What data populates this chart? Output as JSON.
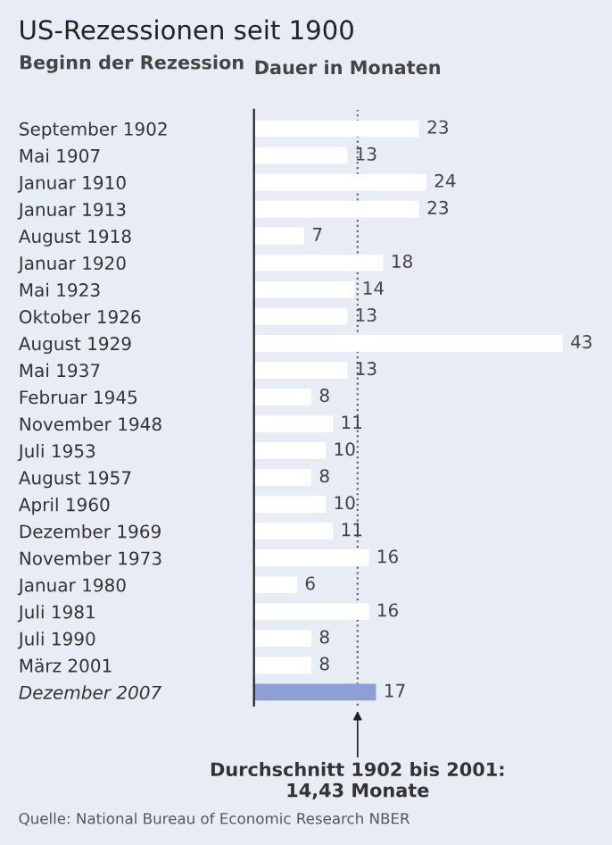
{
  "chart_data": {
    "type": "bar",
    "orientation": "horizontal",
    "title": "US-Rezessionen seit 1900",
    "ylabel": "Beginn der Rezession",
    "xlabel": "Dauer in Monaten",
    "categories": [
      "September 1902",
      "Mai 1907",
      "Januar 1910",
      "Januar 1913",
      "August 1918",
      "Januar 1920",
      "Mai 1923",
      "Oktober 1926",
      "August 1929",
      "Mai 1937",
      "Februar 1945",
      "November 1948",
      "Juli 1953",
      "August 1957",
      "April 1960",
      "Dezember 1969",
      "November 1973",
      "Januar 1980",
      "Juli 1981",
      "Juli 1990",
      "März 2001",
      "Dezember 2007"
    ],
    "values": [
      23,
      13,
      24,
      23,
      7,
      18,
      14,
      13,
      43,
      13,
      8,
      11,
      10,
      8,
      10,
      11,
      16,
      6,
      16,
      8,
      8,
      17
    ],
    "colors": [
      "#ffffff",
      "#ffffff",
      "#ffffff",
      "#ffffff",
      "#ffffff",
      "#ffffff",
      "#ffffff",
      "#ffffff",
      "#ffffff",
      "#ffffff",
      "#ffffff",
      "#ffffff",
      "#ffffff",
      "#ffffff",
      "#ffffff",
      "#ffffff",
      "#ffffff",
      "#ffffff",
      "#ffffff",
      "#ffffff",
      "#ffffff",
      "#8d9fd6"
    ],
    "data_labels": true,
    "ref_lines": [
      {
        "axis": "x",
        "value": 14.43,
        "label": "Durchschnitt 1902 bis 2001:\n14,43 Monate",
        "line_style": "dotted",
        "color": "#666666"
      }
    ],
    "annotations": [
      "Quelle: National Bureau of Economic Research NBER"
    ]
  }
}
